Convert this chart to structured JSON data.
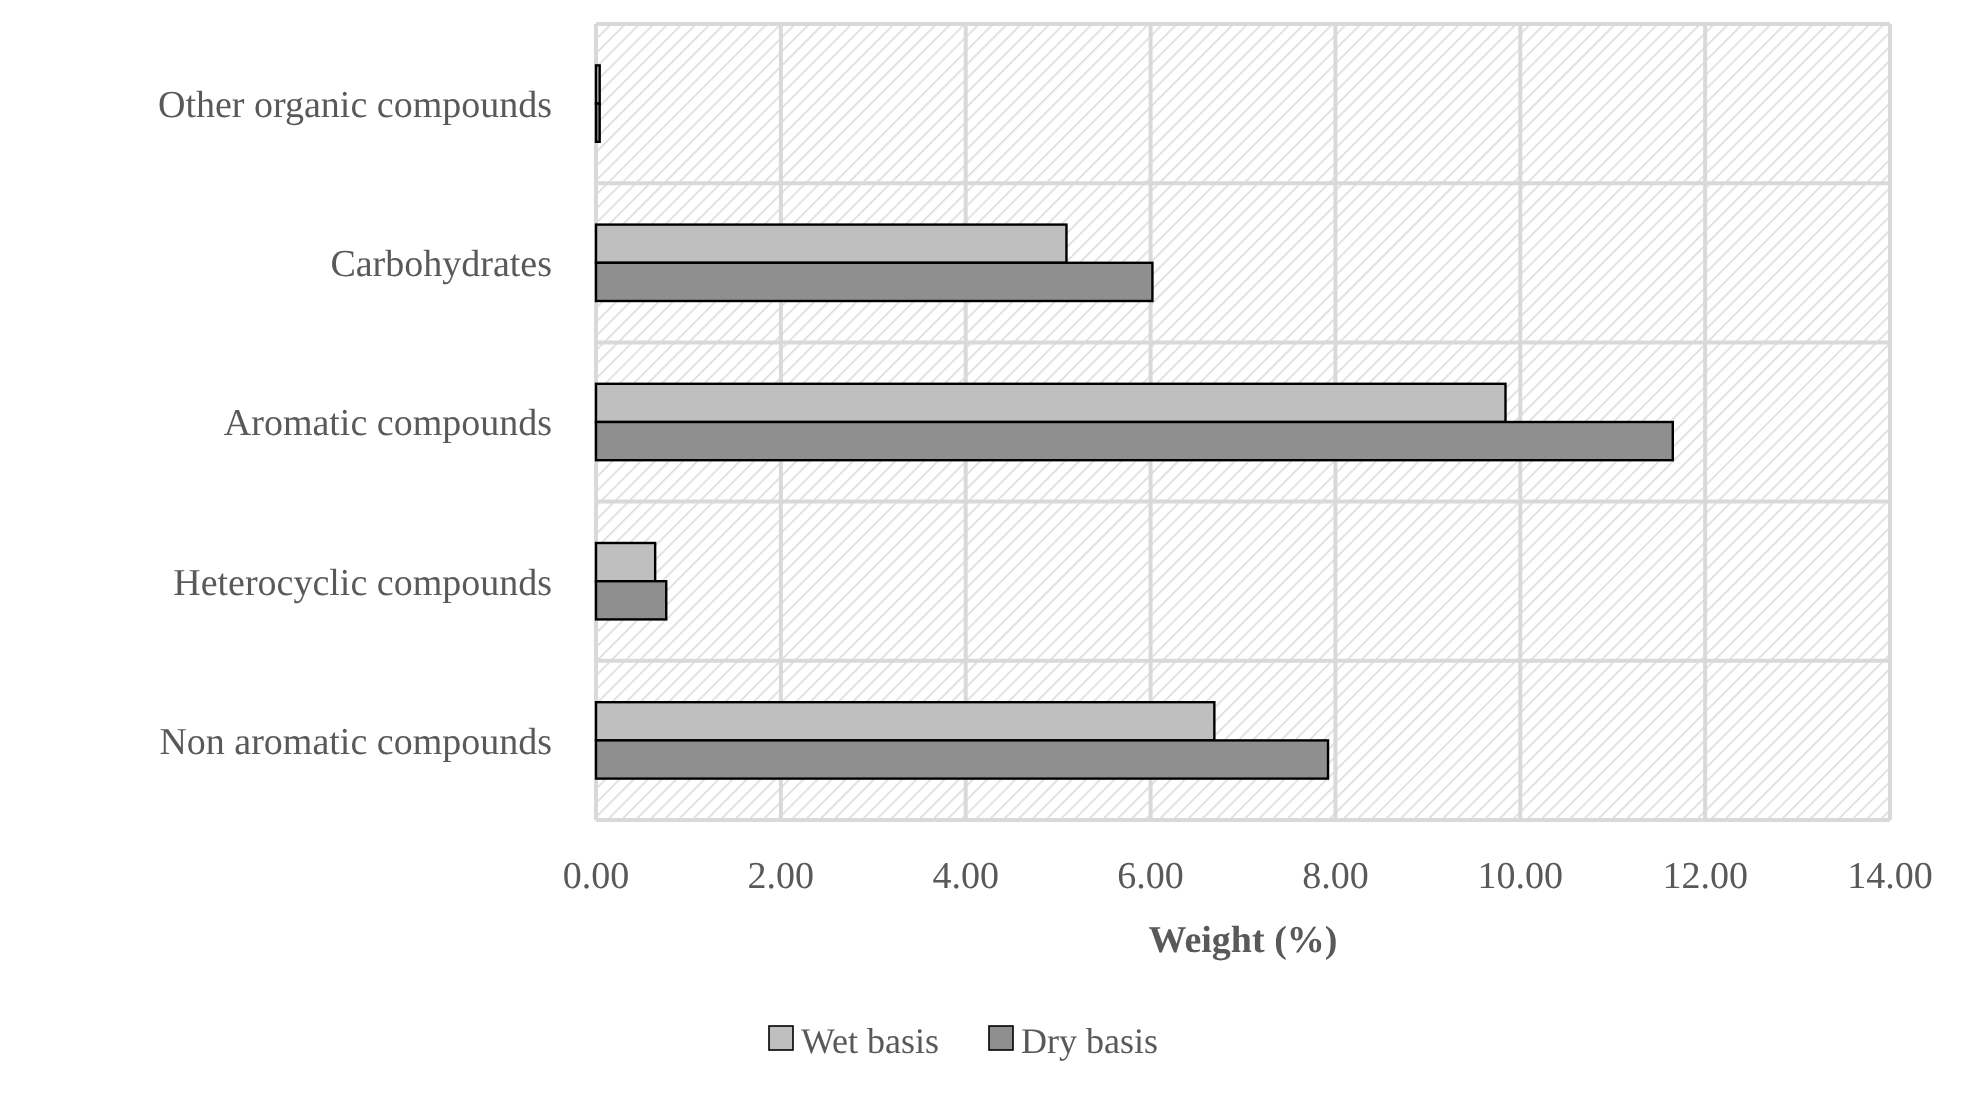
{
  "chart_data": {
    "type": "bar",
    "orientation": "horizontal",
    "xlabel": "Weight (%)",
    "categories": [
      "Other organic compounds",
      "Carbohydrates",
      "Aromatic compounds",
      "Heterocyclic compounds",
      "Non aromatic compounds"
    ],
    "series": [
      {
        "name": "Wet basis",
        "color": "#bfbfbf",
        "values": [
          0.04,
          5.09,
          9.84,
          0.64,
          6.69
        ]
      },
      {
        "name": "Dry basis",
        "color": "#8f8f8f",
        "values": [
          0.04,
          6.02,
          11.65,
          0.76,
          7.92
        ]
      }
    ],
    "xlim": [
      0,
      14
    ],
    "xticks": [
      {
        "value": 0,
        "label": "0.00"
      },
      {
        "value": 2,
        "label": "2.00"
      },
      {
        "value": 4,
        "label": "4.00"
      },
      {
        "value": 6,
        "label": "6.00"
      },
      {
        "value": 8,
        "label": "8.00"
      },
      {
        "value": 10,
        "label": "10.00"
      },
      {
        "value": 12,
        "label": "12.00"
      },
      {
        "value": 14,
        "label": "14.00"
      }
    ],
    "grid": true,
    "legend": "bottom"
  }
}
